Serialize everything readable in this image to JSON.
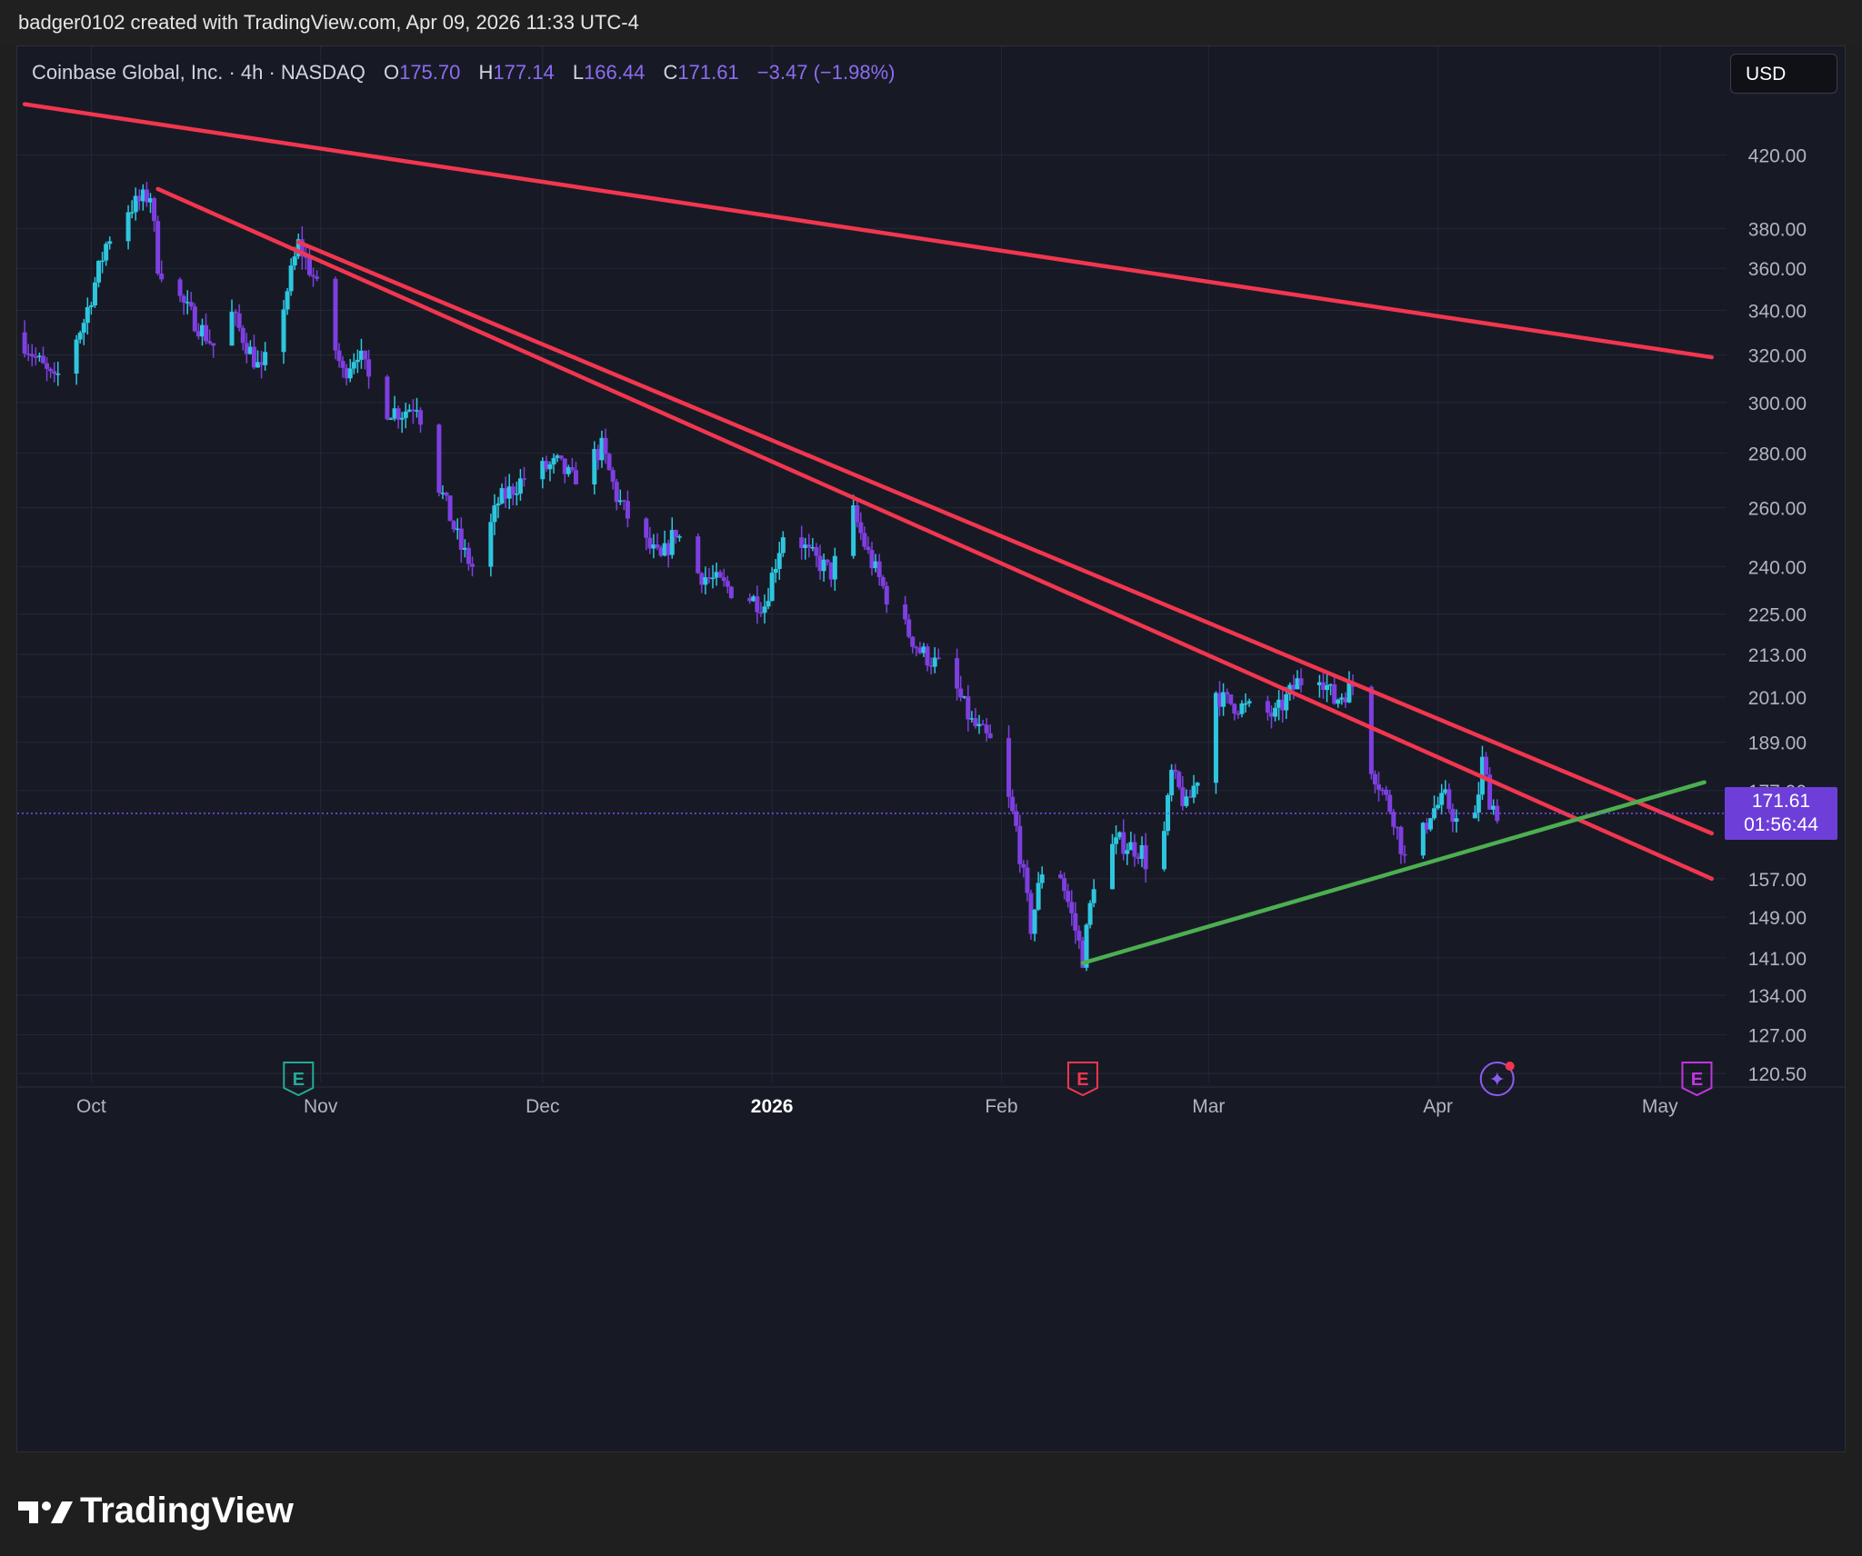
{
  "header": {
    "attribution": "badger0102 created with TradingView.com, Apr 09, 2026 11:33 UTC-4"
  },
  "legend": {
    "symbol": "Coinbase Global, Inc. · 4h · NASDAQ",
    "open_label": "O",
    "open": "175.70",
    "high_label": "H",
    "high": "177.14",
    "low_label": "L",
    "low": "166.44",
    "close_label": "C",
    "close": "171.61",
    "change": "−3.47 (−1.98%)"
  },
  "currency": "USD",
  "last_price": {
    "price": "171.61",
    "countdown": "01:56:44"
  },
  "footer": {
    "brand": "TradingView"
  },
  "colors": {
    "up": "#2ec6df",
    "down": "#7e3fe0",
    "resistance": "#f2364f",
    "support": "#4caf50",
    "background": "#171a25",
    "price_tag": "#6d3fd8"
  },
  "chart_data": {
    "type": "candlestick",
    "title": "Coinbase Global, Inc. · 4h · NASDAQ",
    "y_scale": "log",
    "y_ticks": [
      "420.00",
      "380.00",
      "360.00",
      "340.00",
      "320.00",
      "300.00",
      "280.00",
      "260.00",
      "240.00",
      "225.00",
      "213.00",
      "201.00",
      "189.00",
      "177.00",
      "157.00",
      "149.00",
      "141.00",
      "134.00",
      "127.00",
      "120.50"
    ],
    "x_ticks": [
      {
        "label": "Oct",
        "date": "2025-10-01",
        "bold": false
      },
      {
        "label": "Nov",
        "date": "2025-11-01",
        "bold": false
      },
      {
        "label": "Dec",
        "date": "2025-12-01",
        "bold": false
      },
      {
        "label": "2026",
        "date": "2026-01-01",
        "bold": true
      },
      {
        "label": "Feb",
        "date": "2026-02-01",
        "bold": false
      },
      {
        "label": "Mar",
        "date": "2026-03-01",
        "bold": false
      },
      {
        "label": "Apr",
        "date": "2026-04-01",
        "bold": false
      },
      {
        "label": "May",
        "date": "2026-05-01",
        "bold": false
      }
    ],
    "x_range": [
      "2025-09-21",
      "2026-05-10"
    ],
    "y_range": [
      120.5,
      452
    ],
    "close_path": [
      [
        "2025-09-21",
        330
      ],
      [
        "2025-09-26",
        308
      ],
      [
        "2025-09-30",
        335
      ],
      [
        "2025-10-03",
        372
      ],
      [
        "2025-10-05",
        388
      ],
      [
        "2025-10-09",
        398
      ],
      [
        "2025-10-10",
        362
      ],
      [
        "2025-10-14",
        340
      ],
      [
        "2025-10-18",
        322
      ],
      [
        "2025-10-20",
        338
      ],
      [
        "2025-10-24",
        312
      ],
      [
        "2025-10-27",
        343
      ],
      [
        "2025-10-29",
        372
      ],
      [
        "2025-10-31",
        356
      ],
      [
        "2025-11-04",
        312
      ],
      [
        "2025-11-06",
        322
      ],
      [
        "2025-11-09",
        298
      ],
      [
        "2025-11-12",
        296
      ],
      [
        "2025-11-14",
        300
      ],
      [
        "2025-11-17",
        268
      ],
      [
        "2025-11-20",
        246
      ],
      [
        "2025-11-22",
        238
      ],
      [
        "2025-11-25",
        262
      ],
      [
        "2025-11-29",
        272
      ],
      [
        "2025-12-03",
        276
      ],
      [
        "2025-12-05",
        270
      ],
      [
        "2025-12-09",
        282
      ],
      [
        "2025-12-11",
        264
      ],
      [
        "2025-12-14",
        250
      ],
      [
        "2025-12-17",
        242
      ],
      [
        "2025-12-19",
        252
      ],
      [
        "2025-12-22",
        238
      ],
      [
        "2025-12-27",
        232
      ],
      [
        "2025-12-31",
        228
      ],
      [
        "2026-01-03",
        256
      ],
      [
        "2026-01-06",
        244
      ],
      [
        "2026-01-09",
        238
      ],
      [
        "2026-01-12",
        258
      ],
      [
        "2026-01-14",
        244
      ],
      [
        "2026-01-17",
        228
      ],
      [
        "2026-01-21",
        214
      ],
      [
        "2026-01-25",
        207
      ],
      [
        "2026-01-28",
        194
      ],
      [
        "2026-01-31",
        188
      ],
      [
        "2026-02-03",
        168
      ],
      [
        "2026-02-05",
        147
      ],
      [
        "2026-02-07",
        163
      ],
      [
        "2026-02-09",
        158
      ],
      [
        "2026-02-12",
        141
      ],
      [
        "2026-02-14",
        162
      ],
      [
        "2026-02-17",
        165
      ],
      [
        "2026-02-20",
        163
      ],
      [
        "2026-02-22",
        154
      ],
      [
        "2026-02-24",
        181
      ],
      [
        "2026-02-26",
        173
      ],
      [
        "2026-02-28",
        183
      ],
      [
        "2026-03-01",
        205
      ],
      [
        "2026-03-03",
        200
      ],
      [
        "2026-03-06",
        198
      ],
      [
        "2026-03-10",
        196
      ],
      [
        "2026-03-13",
        205
      ],
      [
        "2026-03-16",
        208
      ],
      [
        "2026-03-18",
        200
      ],
      [
        "2026-03-21",
        205
      ],
      [
        "2026-03-23",
        183
      ],
      [
        "2026-03-26",
        171
      ],
      [
        "2026-03-28",
        158
      ],
      [
        "2026-03-31",
        172
      ],
      [
        "2026-04-02",
        175
      ],
      [
        "2026-04-04",
        168
      ],
      [
        "2026-04-06",
        170
      ],
      [
        "2026-04-07",
        184
      ],
      [
        "2026-04-08",
        175
      ],
      [
        "2026-04-09",
        171.61
      ]
    ],
    "trendlines": [
      {
        "color": "resistance",
        "from": [
          "2025-09-22",
          450
        ],
        "to": [
          "2026-05-08",
          319
        ]
      },
      {
        "color": "resistance",
        "from": [
          "2025-10-10",
          401
        ],
        "to": [
          "2026-05-08",
          157
        ]
      },
      {
        "color": "resistance",
        "from": [
          "2025-10-29",
          373
        ],
        "to": [
          "2026-05-08",
          167
        ]
      },
      {
        "color": "support",
        "from": [
          "2026-02-12",
          140
        ],
        "to": [
          "2026-05-07",
          179
        ]
      }
    ],
    "last_price_line": 171.61,
    "earnings_markers": [
      {
        "date": "2025-10-29",
        "color": "#22ab94",
        "glyph": "E"
      },
      {
        "date": "2026-02-12",
        "color": "#f2364f",
        "glyph": "E"
      },
      {
        "date": "2026-05-06",
        "color": "#c136e0",
        "glyph": "E"
      }
    ],
    "event_marker": {
      "date": "2026-04-09",
      "glyph": "✦"
    }
  }
}
